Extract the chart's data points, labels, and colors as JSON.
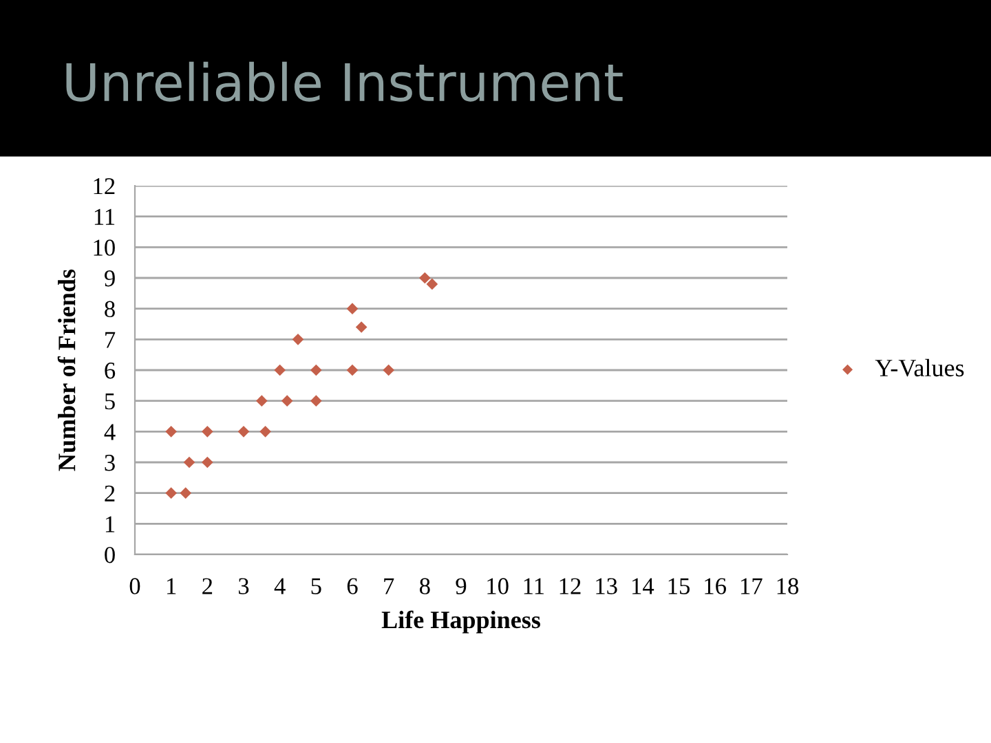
{
  "chart_data": {
    "type": "scatter",
    "title": "Unreliable Instrument",
    "xlabel": "Life Happiness",
    "ylabel": "Number of Friends",
    "x": [
      1,
      1,
      1.4,
      1.5,
      2,
      2,
      3,
      3.6,
      3.5,
      4,
      4.2,
      4.5,
      5,
      5,
      6,
      6,
      6.25,
      7,
      8,
      8.2
    ],
    "series": [
      {
        "name": "Y-Values",
        "color": "#c5604a",
        "values": [
          4,
          2,
          2,
          3,
          4,
          3,
          4,
          4,
          5,
          6,
          5,
          7,
          6,
          5,
          8,
          6,
          7.4,
          6,
          9,
          8.8
        ]
      }
    ],
    "xlim": [
      0,
      18
    ],
    "xticks": [
      0,
      1,
      2,
      3,
      4,
      5,
      6,
      7,
      8,
      9,
      10,
      11,
      12,
      13,
      14,
      15,
      16,
      17,
      18
    ],
    "ylim": [
      0,
      12
    ],
    "yticks": [
      0,
      1,
      2,
      3,
      4,
      5,
      6,
      7,
      8,
      9,
      10,
      11,
      12
    ],
    "grid": "y",
    "legend": "right",
    "marker": "diamond"
  }
}
